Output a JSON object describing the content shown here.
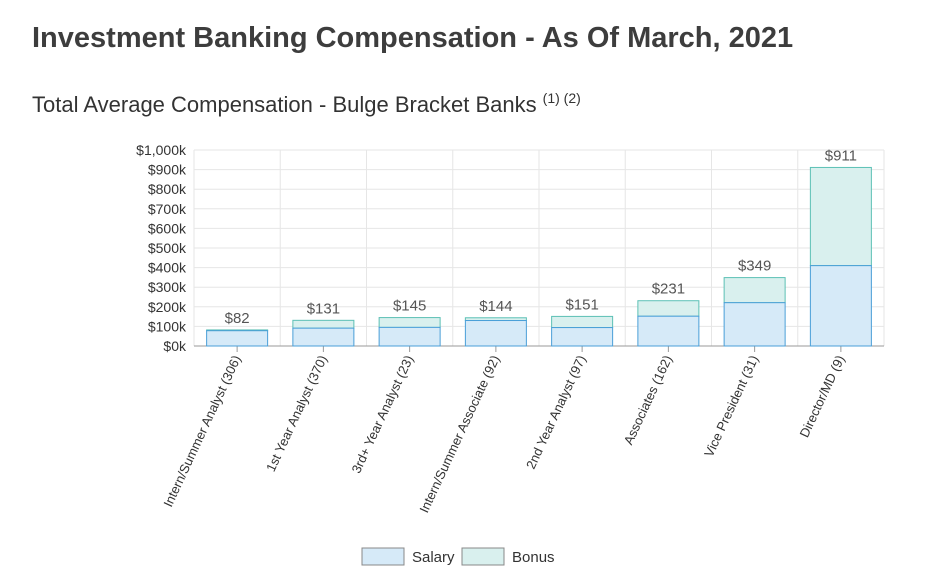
{
  "page": {
    "title": "Investment Banking Compensation - As Of March, 2021"
  },
  "chart_data": {
    "type": "bar",
    "stacked": true,
    "title": "Total Average Compensation - Bulge Bracket Banks",
    "title_superscript": "(1) (2)",
    "categories": [
      "Intern/Summer Analyst (306)",
      "1st Year Analyst (370)",
      "3rd+ Year Analyst (23)",
      "Intern/Summer Associate (92)",
      "2nd Year Analyst (97)",
      "Associates (162)",
      "Vice President (31)",
      "Director/MD (9)"
    ],
    "series": [
      {
        "name": "Salary",
        "color": "#d6eaf8",
        "stroke": "#4a9fd8",
        "values": [
          78,
          91,
          95,
          130,
          94,
          152,
          221,
          410
        ]
      },
      {
        "name": "Bonus",
        "color": "#d9f0ee",
        "stroke": "#5cc0b5",
        "values": [
          4,
          40,
          50,
          14,
          57,
          79,
          128,
          501
        ]
      }
    ],
    "totals": [
      82,
      131,
      145,
      144,
      151,
      231,
      349,
      911
    ],
    "total_labels": [
      "$82",
      "$131",
      "$145",
      "$144",
      "$151",
      "$231",
      "$349",
      "$911"
    ],
    "y_ticks": [
      0,
      100,
      200,
      300,
      400,
      500,
      600,
      700,
      800,
      900,
      1000
    ],
    "y_tick_labels": [
      "$0k",
      "$100k",
      "$200k",
      "$300k",
      "$400k",
      "$500k",
      "$600k",
      "$700k",
      "$800k",
      "$900k",
      "$1,000k"
    ],
    "ylim": [
      0,
      1000
    ],
    "xlabel": "",
    "ylabel": "",
    "grid": true,
    "legend": "bottom-center"
  }
}
